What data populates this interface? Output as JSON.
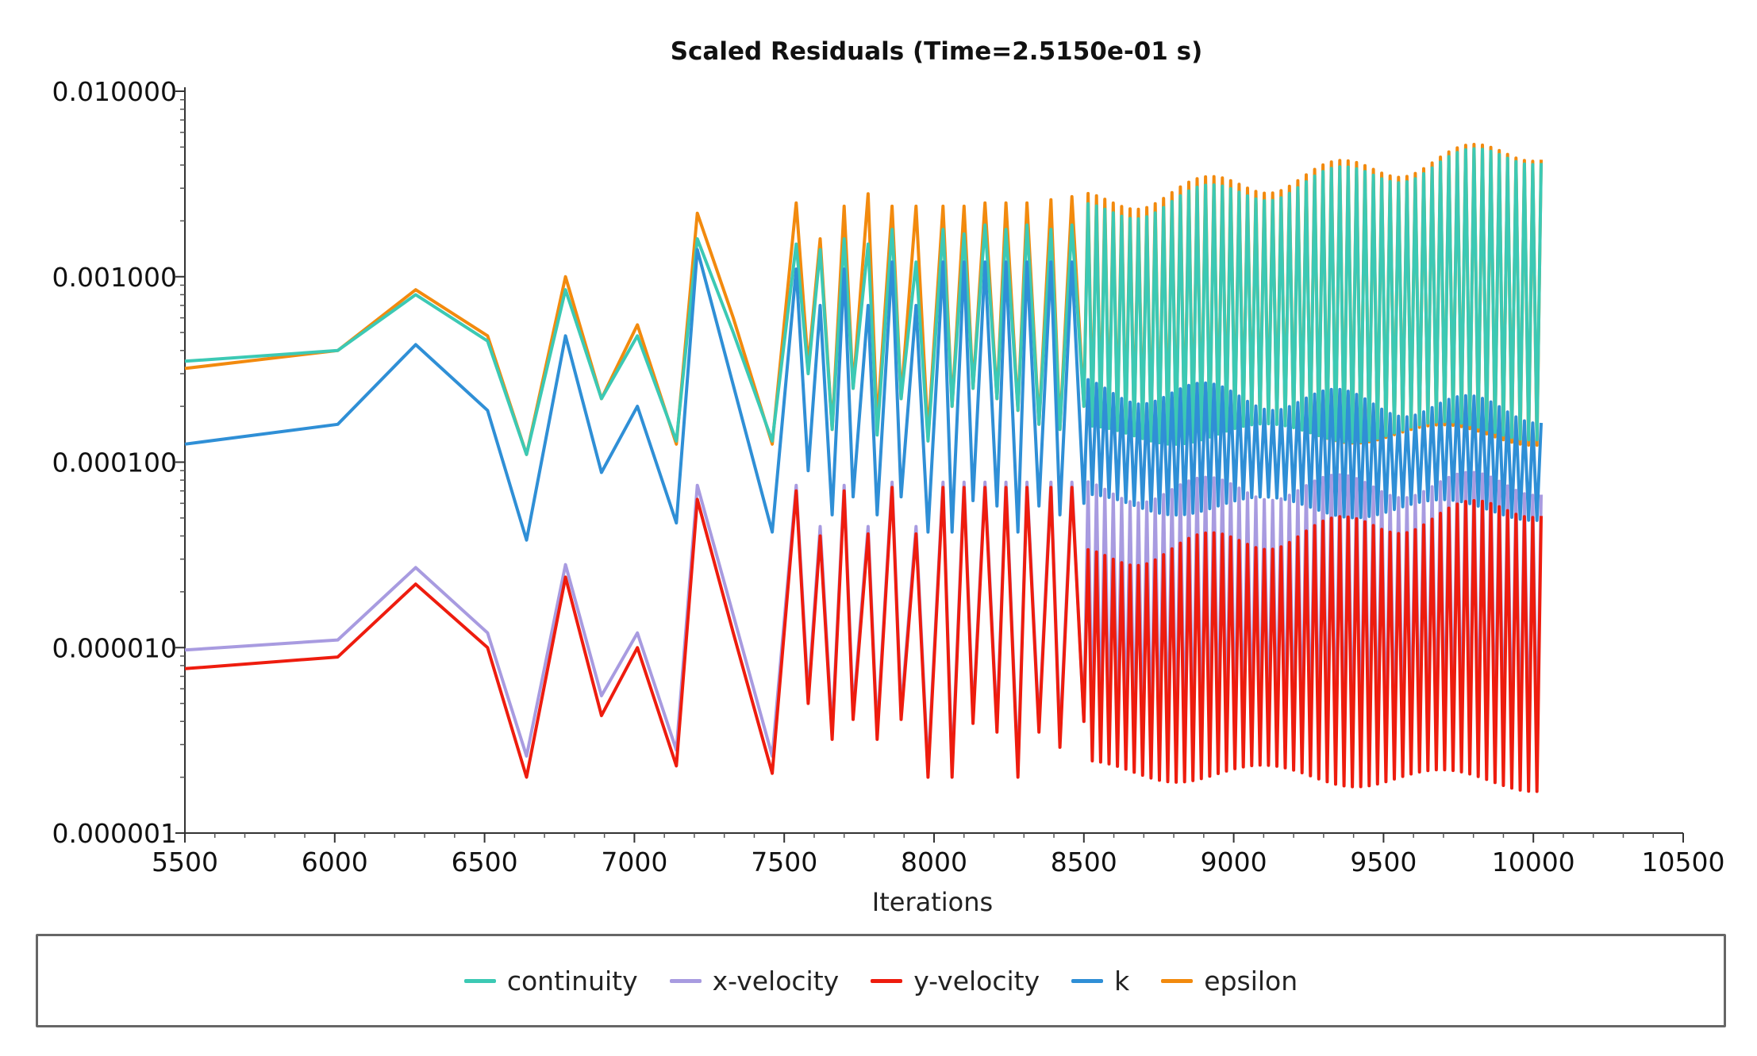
{
  "chart_data": {
    "type": "line",
    "title": "Scaled Residuals (Time=2.5150e-01 s)",
    "xlabel": "Iterations",
    "ylabel": "",
    "xlim": [
      5500,
      10500
    ],
    "ylim": [
      1e-06,
      0.01
    ],
    "yscale": "log",
    "x_ticks": [
      5500,
      6000,
      6500,
      7000,
      7500,
      8000,
      8500,
      9000,
      9500,
      10000,
      10500
    ],
    "x_tick_labels": [
      "5500",
      "6000",
      "6500",
      "7000",
      "7500",
      "8000",
      "8500",
      "9000",
      "9500",
      "10000",
      "10500"
    ],
    "y_ticks": [
      1e-06,
      1e-05,
      0.0001,
      0.001,
      0.01
    ],
    "y_tick_labels": [
      "0.000001",
      "0.000010",
      "0.000100",
      "0.001000",
      "0.010000"
    ],
    "legend_position": "bottom",
    "series": [
      {
        "name": "continuity",
        "color": "#3cc9b4",
        "x": [
          5500,
          6010,
          6270,
          6510,
          6640,
          6770,
          6890,
          7010,
          7140,
          7210,
          7330,
          7460,
          7540,
          7580,
          7620,
          7660,
          7700,
          7730,
          7780,
          7810,
          7860,
          7890,
          7940,
          7980,
          8030,
          8060,
          8100,
          8130,
          8170,
          8210,
          8240,
          8280,
          8310,
          8350,
          8390,
          8420,
          8460,
          8500
        ],
        "y": [
          0.00035,
          0.0004,
          0.0008,
          0.00045,
          0.00011,
          0.00085,
          0.00022,
          0.00048,
          0.00013,
          0.0016,
          0.0005,
          0.00013,
          0.0015,
          0.0003,
          0.0014,
          0.00015,
          0.0016,
          0.00025,
          0.0015,
          0.00014,
          0.0018,
          0.00022,
          0.0012,
          0.00013,
          0.0018,
          0.0002,
          0.0017,
          0.00025,
          0.0019,
          0.00022,
          0.0018,
          0.00019,
          0.0019,
          0.00016,
          0.0018,
          0.00015,
          0.0019,
          0.0002
        ],
        "dense": {
          "x_start": 8500,
          "x_end": 10030,
          "period": 28,
          "upper": [
            0.0022,
            0.0048
          ],
          "lower": [
            0.00014,
            0.00015
          ]
        }
      },
      {
        "name": "x-velocity",
        "color": "#a89be0",
        "x": [
          5500,
          6010,
          6270,
          6510,
          6640,
          6770,
          6890,
          7010,
          7140,
          7210,
          7330,
          7460,
          7540,
          7580,
          7620,
          7660,
          7700,
          7730,
          7780,
          7810,
          7860,
          7890,
          7940,
          7980,
          8030,
          8060,
          8100,
          8130,
          8170,
          8210,
          8240,
          8280,
          8310,
          8350,
          8390,
          8420,
          8460,
          8500
        ],
        "y": [
          9.7e-06,
          1.1e-05,
          2.7e-05,
          1.2e-05,
          2.6e-06,
          2.8e-05,
          5.5e-06,
          1.2e-05,
          2.8e-06,
          7.5e-05,
          1.5e-05,
          2.6e-06,
          7.5e-05,
          5.5e-06,
          4.5e-05,
          3.5e-06,
          7.5e-05,
          4.5e-06,
          4.5e-05,
          3.5e-06,
          7.8e-05,
          4.5e-06,
          4.5e-05,
          2.2e-06,
          7.8e-05,
          2.2e-06,
          7.8e-05,
          4.2e-06,
          7.8e-05,
          3.8e-06,
          7.8e-05,
          2.2e-06,
          7.8e-05,
          3.8e-06,
          7.8e-05,
          3.2e-06,
          7.8e-05,
          4e-06
        ],
        "dense": {
          "x_start": 8500,
          "x_end": 10030,
          "period": 28,
          "upper": [
            7e-05,
            7.8e-05
          ],
          "lower": [
            3e-06,
            3e-06
          ]
        }
      },
      {
        "name": "y-velocity",
        "color": "#ee1c0e",
        "x": [
          5500,
          6010,
          6270,
          6510,
          6640,
          6770,
          6890,
          7010,
          7140,
          7210,
          7330,
          7460,
          7540,
          7580,
          7620,
          7660,
          7700,
          7730,
          7780,
          7810,
          7860,
          7890,
          7940,
          7980,
          8030,
          8060,
          8100,
          8130,
          8170,
          8210,
          8240,
          8280,
          8310,
          8350,
          8390,
          8420,
          8460,
          8500
        ],
        "y": [
          7.7e-06,
          8.9e-06,
          2.2e-05,
          1e-05,
          2e-06,
          2.4e-05,
          4.3e-06,
          1e-05,
          2.3e-06,
          6.3e-05,
          1.2e-05,
          2.1e-06,
          7e-05,
          5e-06,
          4e-05,
          3.2e-06,
          7e-05,
          4.1e-06,
          4.1e-05,
          3.2e-06,
          7.3e-05,
          4.1e-06,
          4.1e-05,
          2e-06,
          7.3e-05,
          2e-06,
          7.3e-05,
          3.9e-06,
          7.3e-05,
          3.5e-06,
          7.3e-05,
          2e-06,
          7.3e-05,
          3.5e-06,
          7.3e-05,
          2.9e-06,
          7.3e-05,
          4e-06
        ],
        "dense": {
          "x_start": 8500,
          "x_end": 10030,
          "period": 28,
          "upper": [
            3e-05,
            6e-05
          ],
          "lower": [
            2.2e-06,
            1.9e-06
          ]
        }
      },
      {
        "name": "k",
        "color": "#2f8fd6",
        "x": [
          5500,
          6010,
          6270,
          6510,
          6640,
          6770,
          6890,
          7010,
          7140,
          7210,
          7330,
          7460,
          7540,
          7580,
          7620,
          7660,
          7700,
          7730,
          7780,
          7810,
          7860,
          7890,
          7940,
          7980,
          8030,
          8060,
          8100,
          8130,
          8170,
          8210,
          8240,
          8280,
          8310,
          8350,
          8390,
          8420,
          8460,
          8500
        ],
        "y": [
          0.000125,
          0.00016,
          0.00043,
          0.00019,
          3.8e-05,
          0.00048,
          8.8e-05,
          0.0002,
          4.7e-05,
          0.0014,
          0.00026,
          4.2e-05,
          0.0011,
          9e-05,
          0.0007,
          5.2e-05,
          0.0011,
          6.5e-05,
          0.0007,
          5.2e-05,
          0.0012,
          6.5e-05,
          0.0007,
          4.2e-05,
          0.0012,
          4.2e-05,
          0.0012,
          6.2e-05,
          0.0012,
          5.8e-05,
          0.0012,
          4.2e-05,
          0.0012,
          5.8e-05,
          0.0012,
          5.2e-05,
          0.0012,
          6e-05
        ],
        "dense": {
          "x_start": 8500,
          "x_end": 10030,
          "period": 28,
          "upper": [
            0.00025,
            0.00019
          ],
          "lower": [
            6e-05,
            5.5e-05
          ]
        }
      },
      {
        "name": "epsilon",
        "color": "#f28a0e",
        "x": [
          5500,
          6010,
          6270,
          6510,
          6640,
          6770,
          6890,
          7010,
          7140,
          7210,
          7330,
          7460,
          7540,
          7580,
          7620,
          7660,
          7700,
          7730,
          7780,
          7810,
          7860,
          7890,
          7940,
          7980,
          8030,
          8060,
          8100,
          8130,
          8170,
          8210,
          8240,
          8280,
          8310,
          8350,
          8390,
          8420,
          8460,
          8500
        ],
        "y": [
          0.00032,
          0.0004,
          0.00085,
          0.00048,
          0.00011,
          0.001,
          0.00022,
          0.00055,
          0.000125,
          0.0022,
          0.0006,
          0.000125,
          0.0025,
          0.00033,
          0.0016,
          0.00015,
          0.0024,
          0.00025,
          0.0028,
          0.00016,
          0.0024,
          0.00022,
          0.0024,
          0.00014,
          0.0024,
          0.0002,
          0.0024,
          0.00025,
          0.0025,
          0.00022,
          0.0025,
          0.00019,
          0.0025,
          0.00016,
          0.0026,
          0.00015,
          0.0027,
          0.0002
        ],
        "dense": {
          "x_start": 8500,
          "x_end": 10030,
          "period": 28,
          "upper": [
            0.0025,
            0.005
          ],
          "lower": [
            0.00015,
            0.00014
          ]
        }
      }
    ]
  }
}
